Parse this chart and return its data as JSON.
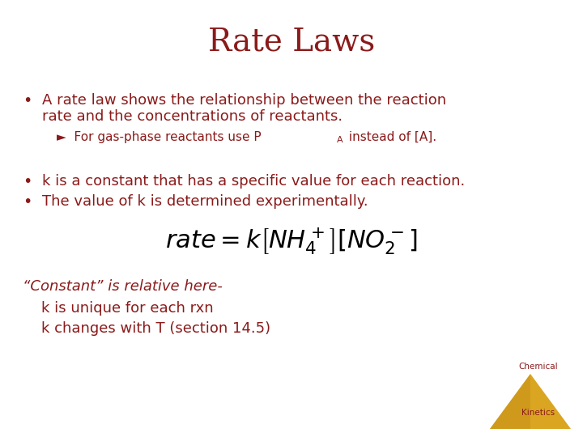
{
  "title": "Rate Laws",
  "title_color": "#8B1A1A",
  "title_fontsize": 28,
  "bg_color": "#FFFFFF",
  "text_color": "#8B1A1A",
  "bullet1_line1": "A rate law shows the relationship between the reaction",
  "bullet1_line2": "rate and the concentrations of reactants.",
  "subbullet1_main": "►  For gas-phase reactants use P",
  "subbullet1_sub": "A",
  "subbullet1_end": " instead of [A].",
  "bullet2": "k is a constant that has a specific value for each reaction.",
  "bullet3": "The value of k is determined experimentally.",
  "italic_text": "“Constant” is relative here-",
  "note1": "    k is unique for each rxn",
  "note2": "    k changes with T (section 14.5)",
  "triangle_color": "#DAA520",
  "triangle_shadow_color": "#B8860B",
  "triangle_label1": "Chemical",
  "triangle_label2": "Kinetics",
  "label_color": "#8B1A1A",
  "fs_base": 13,
  "fs_sub": 11,
  "fs_sub_script": 8
}
